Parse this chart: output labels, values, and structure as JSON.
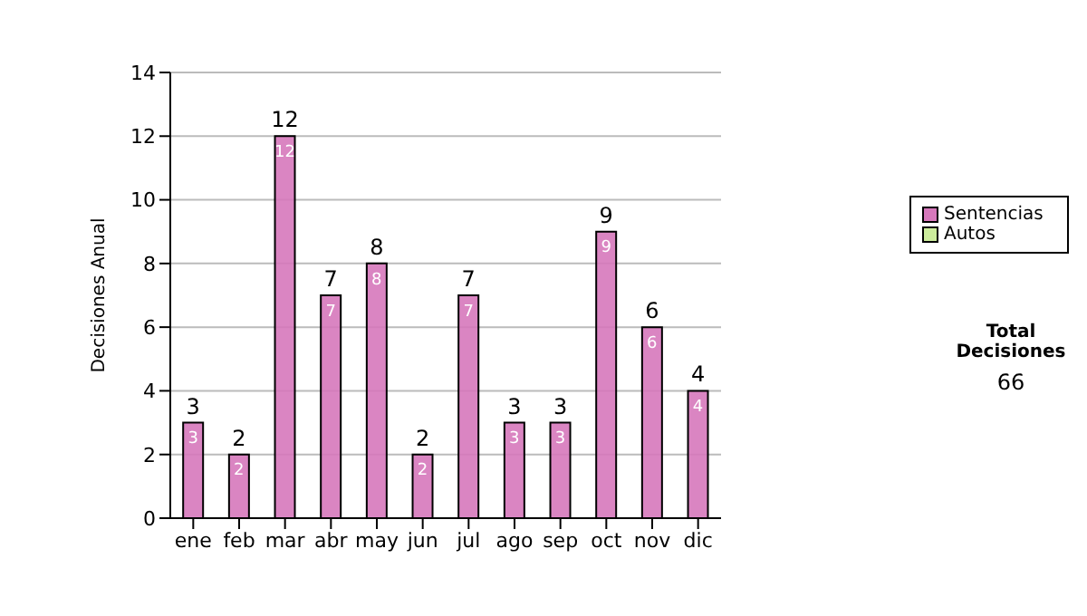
{
  "chart_data": {
    "type": "bar",
    "categories": [
      "ene",
      "feb",
      "mar",
      "abr",
      "may",
      "jun",
      "jul",
      "ago",
      "sep",
      "oct",
      "nov",
      "dic"
    ],
    "series": [
      {
        "name": "Sentencias",
        "color": "#d678bb",
        "values": [
          3,
          2,
          12,
          7,
          8,
          2,
          7,
          3,
          3,
          9,
          6,
          4
        ]
      },
      {
        "name": "Autos",
        "color": "#ccec9c",
        "values": [
          null,
          null,
          null,
          null,
          null,
          null,
          null,
          null,
          null,
          null,
          null,
          null
        ]
      }
    ],
    "ylabel": "Decisiones Anual",
    "ylim": [
      0,
      14
    ],
    "yticks": [
      0,
      2,
      4,
      6,
      8,
      10,
      12,
      14
    ],
    "grid": "y",
    "legend": "right",
    "data_labels": true,
    "stacked": true,
    "totals": [
      "3",
      "2",
      "12",
      "7",
      "8",
      "2",
      "7",
      "3",
      "3",
      "9",
      "6",
      "4"
    ],
    "annotations": [
      "Total Decisiones",
      "66"
    ]
  }
}
